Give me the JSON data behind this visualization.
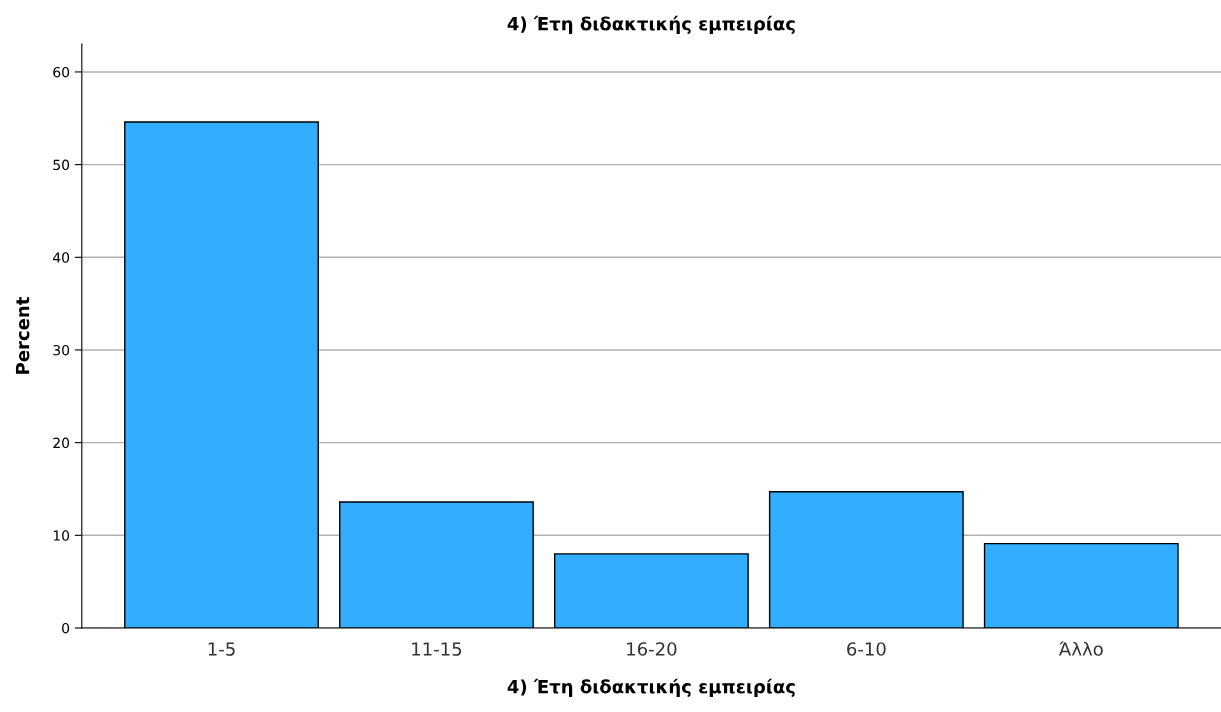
{
  "chart_data": {
    "type": "bar",
    "title": "4) Έτη διδακτικής εμπειρίας",
    "xlabel": "4) Έτη διδακτικής εμπειρίας",
    "ylabel": "Percent",
    "categories": [
      "1-5",
      "11-15",
      "16-20",
      "6-10",
      "Άλλο"
    ],
    "values": [
      54.6,
      13.6,
      8.0,
      14.7,
      9.1
    ],
    "color": "#33adff",
    "ylim": [
      0,
      63
    ],
    "yticks": [
      0,
      10,
      20,
      30,
      40,
      50,
      60
    ],
    "grid": "y"
  }
}
